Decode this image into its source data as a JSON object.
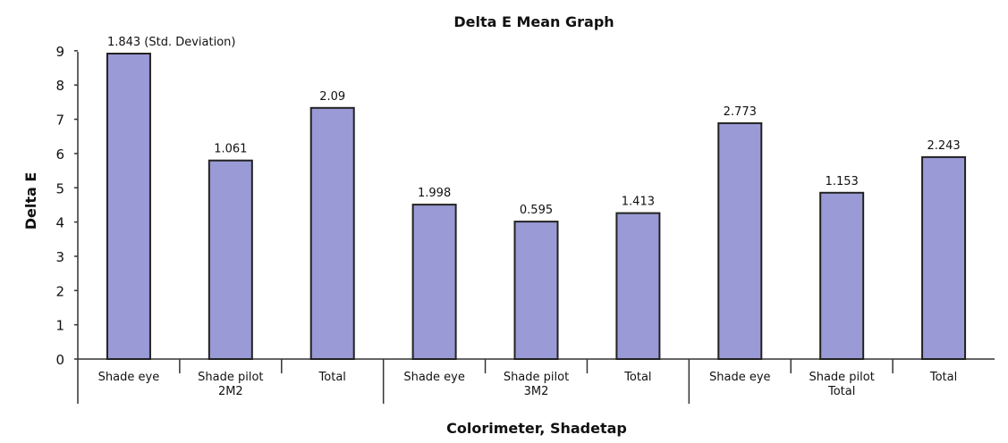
{
  "chart_data": {
    "type": "bar",
    "title": "Delta E Mean Graph",
    "xlabel": "Colorimeter, Shadetap",
    "ylabel": "Delta E",
    "ylim": [
      0,
      9
    ],
    "yticks": [
      "0",
      "1",
      "2",
      "3",
      "4",
      "5",
      "6",
      "7",
      "8",
      "9"
    ],
    "categories": [
      [
        "Shade eye"
      ],
      [
        "Shade pilot",
        "2M2"
      ],
      [
        "Total"
      ],
      [
        "Shade eye"
      ],
      [
        "Shade pilot",
        "3M2"
      ],
      [
        "Total"
      ],
      [
        "Shade eye"
      ],
      [
        "Shade pilot",
        "Total"
      ],
      [
        "Total"
      ]
    ],
    "values": [
      9.0,
      5.85,
      7.4,
      4.55,
      4.05,
      4.3,
      6.95,
      4.9,
      5.95
    ],
    "data_labels": [
      "1.843 (Std. Deviation)",
      "1.061",
      "2.09",
      "1.998",
      "0.595",
      "1.413",
      "2.773",
      "1.153",
      "2.243"
    ],
    "bar_color": "#9a9ad6",
    "grid": false,
    "legend": "none"
  }
}
